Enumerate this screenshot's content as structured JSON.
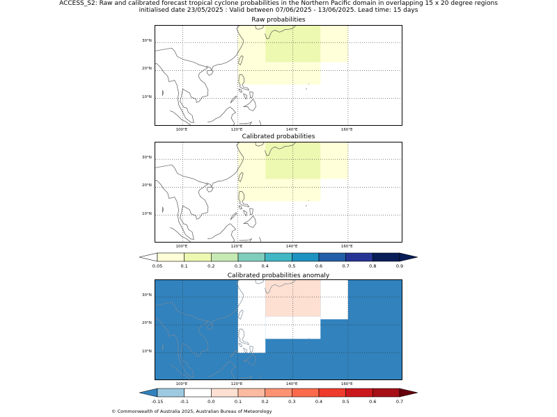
{
  "header": {
    "line1": "ACCESS_S2: Raw and calibrated forecast tropical cyclone probabilities in the Northern Pacific domain in overlapping 15 x 20 degree regions",
    "line2": "initialised date 23/05/2025 :  Valid between 07/06/2025 - 13/06/2025. Lead time: 15 days"
  },
  "panels": [
    {
      "title": "Raw probabilities"
    },
    {
      "title": "Calibrated probabilities"
    },
    {
      "title": "Calibrated probabilities anomaly"
    }
  ],
  "axes": {
    "lon_labels": [
      "100°E",
      "120°E",
      "140°E",
      "160°E"
    ],
    "lat_labels": [
      "30°N",
      "20°N",
      "10°N"
    ]
  },
  "prob_colorbar": {
    "ticks": [
      "0.05",
      "0.1",
      "0.2",
      "0.3",
      "0.4",
      "0.5",
      "0.6",
      "0.7",
      "0.8",
      "0.9"
    ],
    "colors": [
      "#ffffd9",
      "#edf8b1",
      "#c7e9b4",
      "#7fcdbb",
      "#41b6c4",
      "#1d91c0",
      "#225ea8",
      "#253494",
      "#081d58"
    ]
  },
  "anom_colorbar": {
    "ticks": [
      "-0.15",
      "-0.1",
      "0.0",
      "0.1",
      "0.2",
      "0.3",
      "0.4",
      "0.5",
      "0.6",
      "0.7"
    ],
    "colors": [
      "#9ecae1",
      "#ffffff",
      "#fee0d2",
      "#fcbba1",
      "#fc9272",
      "#fb6a4a",
      "#ef3b2c",
      "#cb181d",
      "#a50f15"
    ],
    "under_color": "#3182bd",
    "over_color": "#67000d"
  },
  "footer": "© Commonwealth of Australia 2025, Australian Bureau of Meteorology",
  "chart_data": {
    "type": "heatmap",
    "region": {
      "lon_range": [
        90,
        180
      ],
      "lat_range": [
        0,
        36
      ]
    },
    "raw_probabilities": [
      {
        "lon": [
          120,
          130
        ],
        "lat": [
          15,
          36
        ],
        "value": 0.05
      },
      {
        "lon": [
          130,
          150
        ],
        "lat": [
          15,
          23
        ],
        "value": 0.05
      },
      {
        "lon": [
          130,
          150
        ],
        "lat": [
          23,
          36
        ],
        "value": 0.1
      },
      {
        "lon": [
          150,
          160
        ],
        "lat": [
          23,
          36
        ],
        "value": 0.05
      }
    ],
    "calibrated_probabilities": [
      {
        "lon": [
          120,
          130
        ],
        "lat": [
          15,
          36
        ],
        "value": 0.05
      },
      {
        "lon": [
          130,
          150
        ],
        "lat": [
          15,
          23
        ],
        "value": 0.05
      },
      {
        "lon": [
          130,
          150
        ],
        "lat": [
          23,
          36
        ],
        "value": 0.1
      },
      {
        "lon": [
          150,
          160
        ],
        "lat": [
          23,
          36
        ],
        "value": 0.05
      }
    ],
    "calibrated_anomaly": {
      "background": -0.2,
      "cells": [
        {
          "lon": [
            120,
            130
          ],
          "lat": [
            10,
            36
          ],
          "value": -0.1
        },
        {
          "lon": [
            130,
            150
          ],
          "lat": [
            15,
            23
          ],
          "value": -0.1
        },
        {
          "lon": [
            150,
            160
          ],
          "lat": [
            22,
            36
          ],
          "value": -0.1
        },
        {
          "lon": [
            130,
            150
          ],
          "lat": [
            23,
            36
          ],
          "value": 0.0
        }
      ]
    }
  }
}
